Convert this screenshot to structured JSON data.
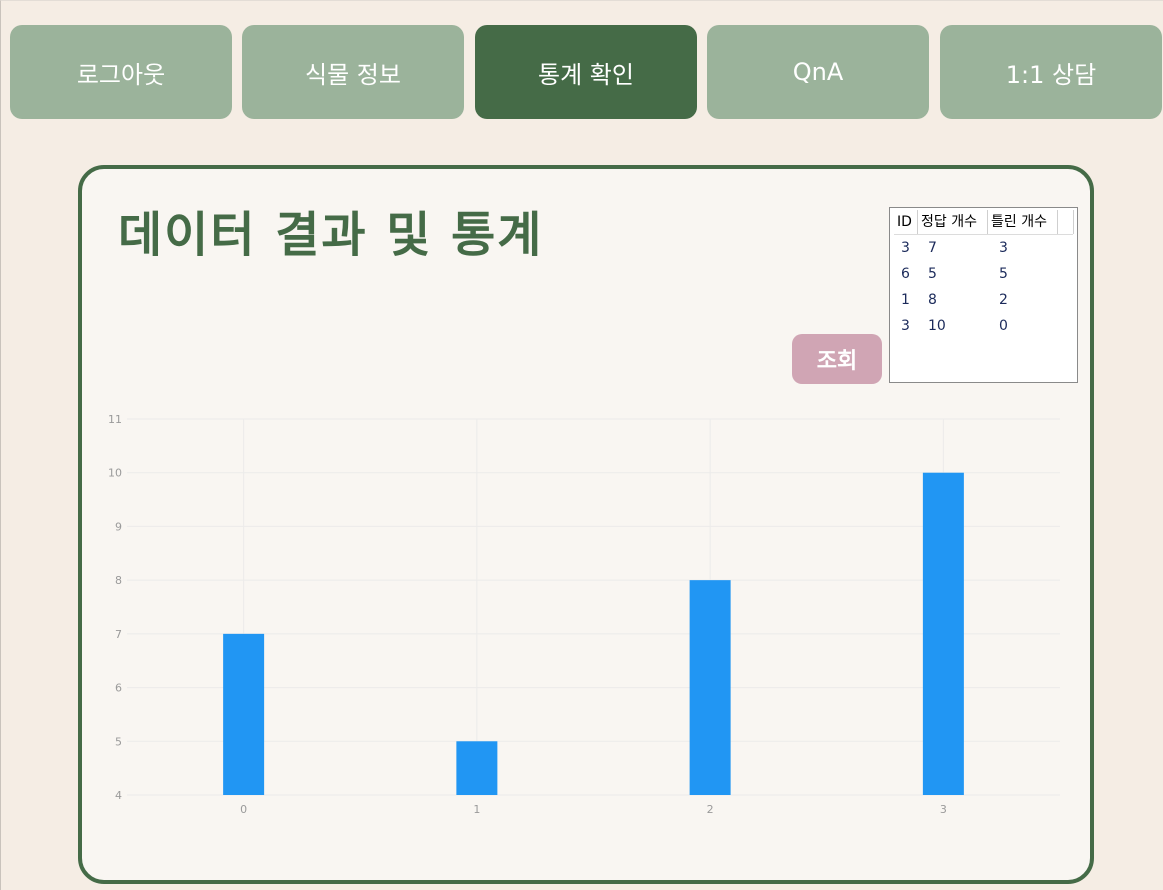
{
  "nav": {
    "items": [
      {
        "label": "로그아웃",
        "active": false
      },
      {
        "label": "식물 정보",
        "active": false
      },
      {
        "label": "통계 확인",
        "active": true
      },
      {
        "label": "QnA",
        "active": false
      },
      {
        "label": "1:1 상담",
        "active": false
      }
    ]
  },
  "panel": {
    "title": "데이터 결과 및 통계",
    "query_button": "조회"
  },
  "table": {
    "headers": [
      "ID",
      "정답 개수",
      "틀린 개수"
    ],
    "rows": [
      [
        "3",
        "7",
        "3"
      ],
      [
        "6",
        "5",
        "5"
      ],
      [
        "1",
        "8",
        "2"
      ],
      [
        "3",
        "10",
        "0"
      ]
    ]
  },
  "colors": {
    "nav_inactive": "#9bb39b",
    "nav_active": "#456b47",
    "bar": "#2196f3",
    "query_button": "#d0a5b4"
  },
  "chart_data": {
    "type": "bar",
    "categories": [
      "0",
      "1",
      "2",
      "3"
    ],
    "values": [
      7,
      5,
      8,
      10
    ],
    "ylim": [
      4,
      11
    ],
    "yticks": [
      4,
      5,
      6,
      7,
      8,
      9,
      10,
      11
    ],
    "grid": true,
    "title": "",
    "xlabel": "",
    "ylabel": ""
  }
}
